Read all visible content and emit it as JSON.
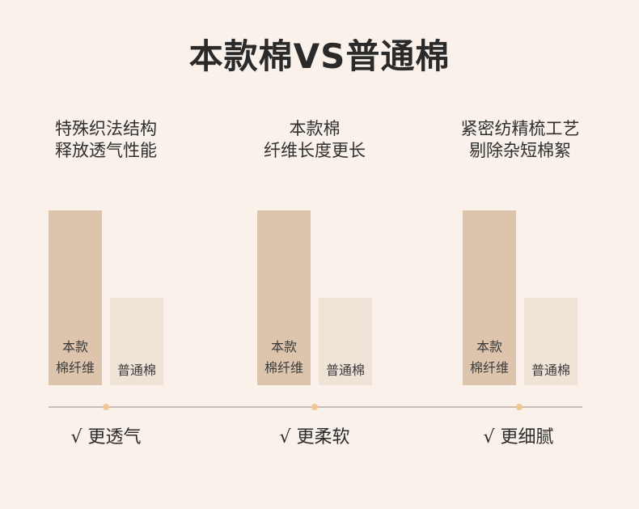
{
  "title": "本款棉VS普通棉",
  "colors": {
    "background": "#f9f1ea",
    "primary_bar": "#dcc4ad",
    "secondary_bar": "#efe2d6",
    "axis_line": "#c9bfb6",
    "axis_dot": "#f2c596"
  },
  "chart_data": {
    "type": "bar",
    "title": "本款棉VS普通棉",
    "ylim": [
      0,
      2
    ],
    "series": [
      {
        "name": "本款棉纤维",
        "label_lines": [
          "本款",
          "棉纤维"
        ],
        "values": [
          2,
          2,
          2
        ]
      },
      {
        "name": "普通棉",
        "label_lines": [
          "普通棉"
        ],
        "values": [
          1,
          1,
          1
        ]
      }
    ],
    "groups": [
      {
        "label_lines": [
          "特殊织法结构",
          "释放透气性能"
        ],
        "benefit": "√ 更透气"
      },
      {
        "label_lines": [
          "本款棉",
          "纤维长度更长"
        ],
        "benefit": "√ 更柔软"
      },
      {
        "label_lines": [
          "紧密纺精梳工艺",
          "剔除杂短棉絮"
        ],
        "benefit": "√ 更细腻"
      }
    ]
  }
}
